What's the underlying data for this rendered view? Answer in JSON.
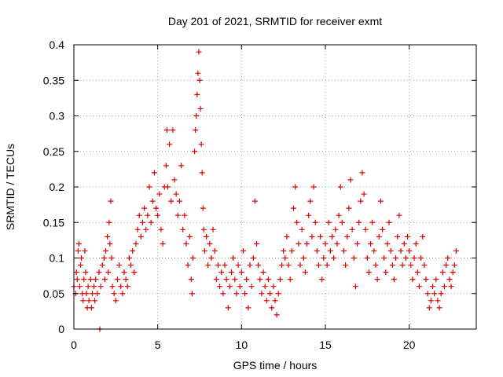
{
  "chart_data": {
    "type": "scatter",
    "title": "Day 201 of 2021, SRMTID for receiver exmt",
    "xlabel": "GPS time / hours",
    "ylabel": "SRMTID / TECUs",
    "xlim": [
      0,
      24
    ],
    "ylim": [
      0,
      0.4
    ],
    "xticks": [
      0,
      5,
      10,
      15,
      20
    ],
    "xtick_labels": [
      "0",
      "5",
      "10",
      "15",
      "20"
    ],
    "yticks": [
      0,
      0.05,
      0.1,
      0.15,
      0.2,
      0.25,
      0.3,
      0.35,
      0.4
    ],
    "ytick_labels": [
      "0",
      "0.05",
      "0.1",
      "0.15",
      "0.2",
      "0.25",
      "0.3",
      "0.35",
      "0.4"
    ],
    "grid": true,
    "marker": "plus",
    "marker_color": "#dd0000",
    "series": [
      {
        "name": "SRMTID",
        "points": [
          [
            0.0,
            0.06
          ],
          [
            0.1,
            0.05
          ],
          [
            0.15,
            0.08
          ],
          [
            0.2,
            0.07
          ],
          [
            0.25,
            0.11
          ],
          [
            0.3,
            0.12
          ],
          [
            0.35,
            0.06
          ],
          [
            0.4,
            0.09
          ],
          [
            0.45,
            0.1
          ],
          [
            0.5,
            0.05
          ],
          [
            0.55,
            0.04
          ],
          [
            0.6,
            0.07
          ],
          [
            0.65,
            0.11
          ],
          [
            0.7,
            0.08
          ],
          [
            0.75,
            0.05
          ],
          [
            0.8,
            0.03
          ],
          [
            0.85,
            0.06
          ],
          [
            0.9,
            0.04
          ],
          [
            1.0,
            0.07
          ],
          [
            1.05,
            0.03
          ],
          [
            1.1,
            0.05
          ],
          [
            1.2,
            0.06
          ],
          [
            1.25,
            0.04
          ],
          [
            1.3,
            0.07
          ],
          [
            1.4,
            0.05
          ],
          [
            1.5,
            0.08
          ],
          [
            1.55,
            0.0
          ],
          [
            1.6,
            0.06
          ],
          [
            1.7,
            0.09
          ],
          [
            1.8,
            0.1
          ],
          [
            1.85,
            0.07
          ],
          [
            1.9,
            0.11
          ],
          [
            2.0,
            0.13
          ],
          [
            2.05,
            0.08
          ],
          [
            2.1,
            0.15
          ],
          [
            2.15,
            0.12
          ],
          [
            2.2,
            0.18
          ],
          [
            2.25,
            0.1
          ],
          [
            2.3,
            0.06
          ],
          [
            2.4,
            0.05
          ],
          [
            2.5,
            0.04
          ],
          [
            2.6,
            0.07
          ],
          [
            2.7,
            0.09
          ],
          [
            2.8,
            0.06
          ],
          [
            2.9,
            0.05
          ],
          [
            3.0,
            0.08
          ],
          [
            3.1,
            0.07
          ],
          [
            3.2,
            0.06
          ],
          [
            3.3,
            0.1
          ],
          [
            3.4,
            0.09
          ],
          [
            3.5,
            0.11
          ],
          [
            3.6,
            0.08
          ],
          [
            3.7,
            0.12
          ],
          [
            3.8,
            0.14
          ],
          [
            3.9,
            0.16
          ],
          [
            4.0,
            0.13
          ],
          [
            4.1,
            0.15
          ],
          [
            4.2,
            0.17
          ],
          [
            4.3,
            0.14
          ],
          [
            4.4,
            0.16
          ],
          [
            4.5,
            0.2
          ],
          [
            4.6,
            0.15
          ],
          [
            4.7,
            0.18
          ],
          [
            4.8,
            0.22
          ],
          [
            4.9,
            0.17
          ],
          [
            5.0,
            0.16
          ],
          [
            5.1,
            0.19
          ],
          [
            5.2,
            0.14
          ],
          [
            5.3,
            0.12
          ],
          [
            5.4,
            0.2
          ],
          [
            5.5,
            0.23
          ],
          [
            5.55,
            0.28
          ],
          [
            5.6,
            0.2
          ],
          [
            5.7,
            0.26
          ],
          [
            5.8,
            0.18
          ],
          [
            5.9,
            0.28
          ],
          [
            6.0,
            0.21
          ],
          [
            6.1,
            0.19
          ],
          [
            6.2,
            0.16
          ],
          [
            6.3,
            0.18
          ],
          [
            6.4,
            0.23
          ],
          [
            6.5,
            0.14
          ],
          [
            6.6,
            0.16
          ],
          [
            6.7,
            0.12
          ],
          [
            6.8,
            0.09
          ],
          [
            6.9,
            0.13
          ],
          [
            7.0,
            0.07
          ],
          [
            7.05,
            0.05
          ],
          [
            7.1,
            0.1
          ],
          [
            7.2,
            0.25
          ],
          [
            7.25,
            0.28
          ],
          [
            7.3,
            0.3
          ],
          [
            7.35,
            0.33
          ],
          [
            7.4,
            0.36
          ],
          [
            7.45,
            0.39
          ],
          [
            7.5,
            0.35
          ],
          [
            7.55,
            0.31
          ],
          [
            7.6,
            0.26
          ],
          [
            7.65,
            0.22
          ],
          [
            7.7,
            0.17
          ],
          [
            7.75,
            0.14
          ],
          [
            7.8,
            0.11
          ],
          [
            7.9,
            0.13
          ],
          [
            8.0,
            0.09
          ],
          [
            8.1,
            0.12
          ],
          [
            8.2,
            0.1
          ],
          [
            8.3,
            0.14
          ],
          [
            8.4,
            0.11
          ],
          [
            8.5,
            0.07
          ],
          [
            8.6,
            0.09
          ],
          [
            8.7,
            0.06
          ],
          [
            8.8,
            0.08
          ],
          [
            8.9,
            0.05
          ],
          [
            9.0,
            0.09
          ],
          [
            9.1,
            0.07
          ],
          [
            9.2,
            0.03
          ],
          [
            9.3,
            0.06
          ],
          [
            9.4,
            0.08
          ],
          [
            9.5,
            0.1
          ],
          [
            9.6,
            0.07
          ],
          [
            9.7,
            0.05
          ],
          [
            9.8,
            0.09
          ],
          [
            9.9,
            0.06
          ],
          [
            10.0,
            0.08
          ],
          [
            10.1,
            0.11
          ],
          [
            10.2,
            0.05
          ],
          [
            10.3,
            0.07
          ],
          [
            10.4,
            0.03
          ],
          [
            10.5,
            0.09
          ],
          [
            10.6,
            0.06
          ],
          [
            10.7,
            0.1
          ],
          [
            10.8,
            0.18
          ],
          [
            10.9,
            0.12
          ],
          [
            11.0,
            0.09
          ],
          [
            11.1,
            0.07
          ],
          [
            11.2,
            0.05
          ],
          [
            11.3,
            0.08
          ],
          [
            11.4,
            0.06
          ],
          [
            11.5,
            0.04
          ],
          [
            11.6,
            0.07
          ],
          [
            11.7,
            0.05
          ],
          [
            11.8,
            0.03
          ],
          [
            11.9,
            0.06
          ],
          [
            12.0,
            0.04
          ],
          [
            12.1,
            0.02
          ],
          [
            12.2,
            0.05
          ],
          [
            12.3,
            0.07
          ],
          [
            12.4,
            0.09
          ],
          [
            12.5,
            0.11
          ],
          [
            12.6,
            0.1
          ],
          [
            12.7,
            0.13
          ],
          [
            12.8,
            0.09
          ],
          [
            12.9,
            0.07
          ],
          [
            13.0,
            0.11
          ],
          [
            13.1,
            0.17
          ],
          [
            13.2,
            0.2
          ],
          [
            13.3,
            0.15
          ],
          [
            13.4,
            0.12
          ],
          [
            13.5,
            0.09
          ],
          [
            13.6,
            0.14
          ],
          [
            13.7,
            0.1
          ],
          [
            13.8,
            0.08
          ],
          [
            13.9,
            0.12
          ],
          [
            14.0,
            0.16
          ],
          [
            14.1,
            0.18
          ],
          [
            14.2,
            0.13
          ],
          [
            14.3,
            0.2
          ],
          [
            14.4,
            0.15
          ],
          [
            14.5,
            0.11
          ],
          [
            14.6,
            0.09
          ],
          [
            14.7,
            0.13
          ],
          [
            14.8,
            0.07
          ],
          [
            14.9,
            0.1
          ],
          [
            15.0,
            0.12
          ],
          [
            15.1,
            0.09
          ],
          [
            15.2,
            0.15
          ],
          [
            15.3,
            0.11
          ],
          [
            15.4,
            0.13
          ],
          [
            15.5,
            0.1
          ],
          [
            15.6,
            0.14
          ],
          [
            15.7,
            0.12
          ],
          [
            15.8,
            0.16
          ],
          [
            15.9,
            0.2
          ],
          [
            16.0,
            0.15
          ],
          [
            16.1,
            0.11
          ],
          [
            16.2,
            0.09
          ],
          [
            16.3,
            0.13
          ],
          [
            16.4,
            0.17
          ],
          [
            16.5,
            0.21
          ],
          [
            16.6,
            0.14
          ],
          [
            16.7,
            0.1
          ],
          [
            16.8,
            0.06
          ],
          [
            16.9,
            0.12
          ],
          [
            17.0,
            0.15
          ],
          [
            17.1,
            0.18
          ],
          [
            17.2,
            0.22
          ],
          [
            17.3,
            0.19
          ],
          [
            17.4,
            0.14
          ],
          [
            17.5,
            0.1
          ],
          [
            17.6,
            0.08
          ],
          [
            17.7,
            0.12
          ],
          [
            17.8,
            0.15
          ],
          [
            17.9,
            0.11
          ],
          [
            18.0,
            0.09
          ],
          [
            18.1,
            0.07
          ],
          [
            18.2,
            0.13
          ],
          [
            18.3,
            0.18
          ],
          [
            18.4,
            0.14
          ],
          [
            18.5,
            0.1
          ],
          [
            18.6,
            0.08
          ],
          [
            18.7,
            0.12
          ],
          [
            18.8,
            0.15
          ],
          [
            18.9,
            0.11
          ],
          [
            19.0,
            0.09
          ],
          [
            19.1,
            0.07
          ],
          [
            19.2,
            0.1
          ],
          [
            19.3,
            0.13
          ],
          [
            19.4,
            0.16
          ],
          [
            19.5,
            0.11
          ],
          [
            19.6,
            0.09
          ],
          [
            19.7,
            0.12
          ],
          [
            19.8,
            0.1
          ],
          [
            19.9,
            0.13
          ],
          [
            20.0,
            0.11
          ],
          [
            20.1,
            0.09
          ],
          [
            20.2,
            0.07
          ],
          [
            20.3,
            0.1
          ],
          [
            20.4,
            0.12
          ],
          [
            20.5,
            0.08
          ],
          [
            20.6,
            0.06
          ],
          [
            20.7,
            0.1
          ],
          [
            20.8,
            0.13
          ],
          [
            20.9,
            0.09
          ],
          [
            21.0,
            0.07
          ],
          [
            21.1,
            0.05
          ],
          [
            21.2,
            0.03
          ],
          [
            21.3,
            0.04
          ],
          [
            21.4,
            0.06
          ],
          [
            21.5,
            0.05
          ],
          [
            21.6,
            0.07
          ],
          [
            21.7,
            0.04
          ],
          [
            21.8,
            0.03
          ],
          [
            21.9,
            0.05
          ],
          [
            22.0,
            0.08
          ],
          [
            22.1,
            0.06
          ],
          [
            22.2,
            0.09
          ],
          [
            22.3,
            0.1
          ],
          [
            22.4,
            0.07
          ],
          [
            22.5,
            0.06
          ],
          [
            22.6,
            0.08
          ],
          [
            22.7,
            0.09
          ],
          [
            22.8,
            0.11
          ]
        ]
      }
    ]
  }
}
